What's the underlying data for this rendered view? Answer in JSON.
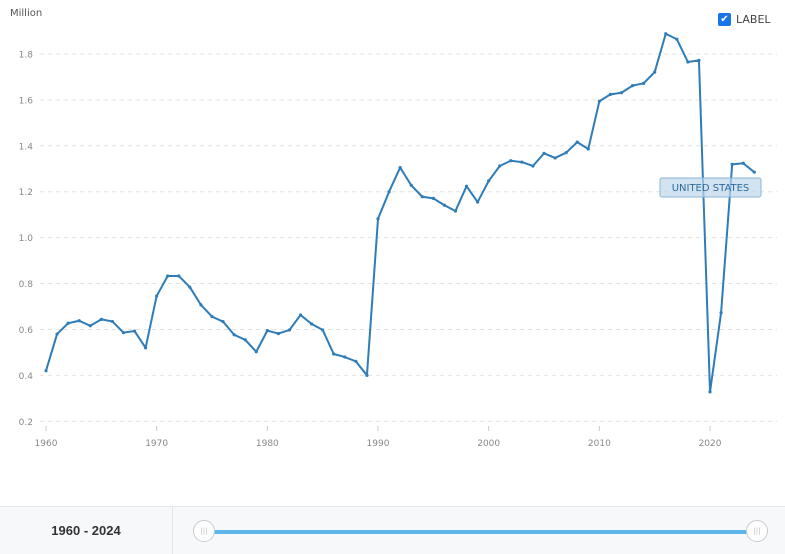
{
  "chart_data": {
    "type": "line",
    "ylabel": "Million",
    "ylim": [
      0.2,
      1.9
    ],
    "yticks": [
      0.2,
      0.4,
      0.6,
      0.8,
      1.0,
      1.2,
      1.4,
      1.6,
      1.8
    ],
    "xticks": [
      1960,
      1970,
      1980,
      1990,
      2000,
      2010,
      2020
    ],
    "grid": true,
    "series": [
      {
        "name": "UNITED STATES",
        "color": "#2e7cb8",
        "x": [
          1960,
          1961,
          1962,
          1963,
          1964,
          1965,
          1966,
          1967,
          1968,
          1969,
          1970,
          1971,
          1972,
          1973,
          1974,
          1975,
          1976,
          1977,
          1978,
          1979,
          1980,
          1981,
          1982,
          1983,
          1984,
          1985,
          1986,
          1987,
          1988,
          1989,
          1990,
          1991,
          1992,
          1993,
          1994,
          1995,
          1996,
          1997,
          1998,
          1999,
          2000,
          2001,
          2002,
          2003,
          2004,
          2005,
          2006,
          2007,
          2008,
          2009,
          2010,
          2011,
          2012,
          2013,
          2014,
          2015,
          2016,
          2017,
          2018,
          2019,
          2020,
          2021,
          2022,
          2023,
          2024
        ],
        "values": [
          0.42,
          0.58,
          0.627,
          0.638,
          0.616,
          0.644,
          0.635,
          0.586,
          0.593,
          0.52,
          0.746,
          0.833,
          0.833,
          0.784,
          0.707,
          0.656,
          0.634,
          0.577,
          0.555,
          0.503,
          0.595,
          0.582,
          0.598,
          0.663,
          0.624,
          0.598,
          0.493,
          0.48,
          0.461,
          0.4,
          1.082,
          1.2,
          1.305,
          1.228,
          1.178,
          1.171,
          1.141,
          1.116,
          1.224,
          1.155,
          1.247,
          1.312,
          1.335,
          1.329,
          1.312,
          1.367,
          1.347,
          1.37,
          1.416,
          1.386,
          1.594,
          1.624,
          1.631,
          1.662,
          1.672,
          1.721,
          1.888,
          1.864,
          1.765,
          1.772,
          0.328,
          0.673,
          1.319,
          1.324,
          1.285
        ]
      }
    ]
  },
  "legend": {
    "checkbox_label": "LABEL",
    "checked": true
  },
  "footer": {
    "range_start": "1960",
    "range_sep": "-",
    "range_end": "2024"
  }
}
